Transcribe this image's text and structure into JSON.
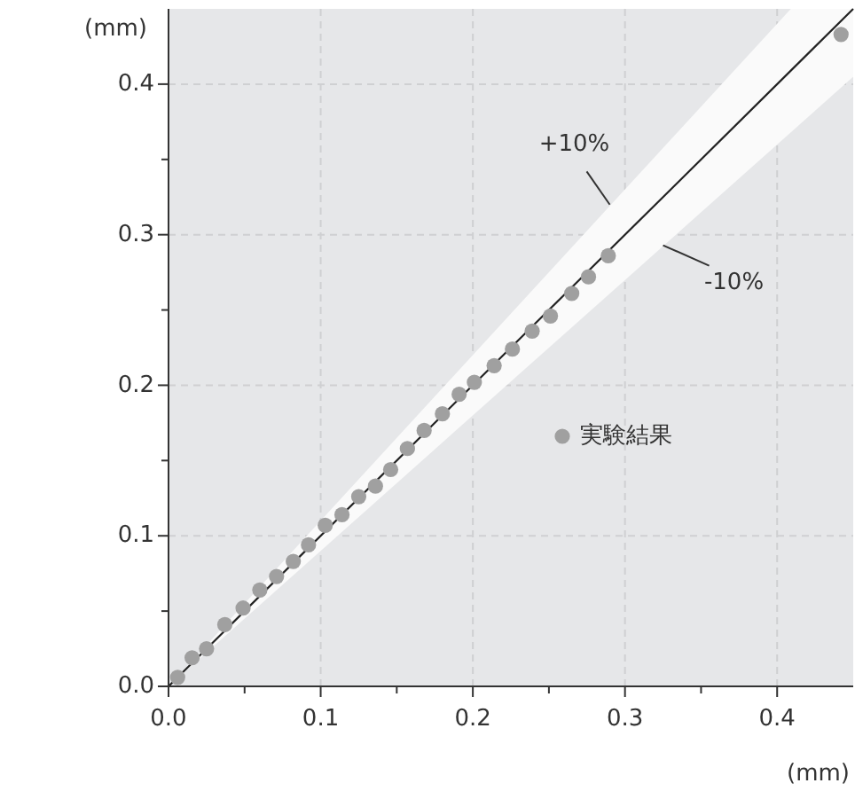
{
  "chart_data": {
    "type": "scatter",
    "xlabel": "(mm)",
    "ylabel": "(mm)",
    "xlim": [
      0,
      0.45
    ],
    "ylim": [
      0,
      0.45
    ],
    "xticks": [
      {
        "value": 0,
        "label": "0.0"
      },
      {
        "value": 0.05,
        "label": null
      },
      0.1,
      {
        "value": 0.15,
        "label": null
      },
      0.2,
      {
        "value": 0.25,
        "label": null
      },
      0.3,
      {
        "value": 0.35,
        "label": null
      },
      0.4
    ],
    "yticks": [
      {
        "value": 0,
        "label": "0.0"
      },
      {
        "value": 0.05,
        "label": null
      },
      0.1,
      {
        "value": 0.15,
        "label": null
      },
      0.2,
      {
        "value": 0.25,
        "label": null
      },
      0.3,
      {
        "value": 0.35,
        "label": null
      },
      0.4
    ],
    "grid": true,
    "legend": "right",
    "series": [
      {
        "type": "line",
        "color": "#222222",
        "line_style": "solid",
        "marker": "none",
        "x": [
          0,
          0.409,
          0.45
        ],
        "values": [
          0,
          0.409,
          0.45
        ],
        "lower": [
          0,
          0.368,
          0.405
        ],
        "upper": [
          0,
          0.45,
          0.45
        ]
      },
      {
        "name": "実験結果",
        "color": "#a0a0a0",
        "marker": "circle",
        "x": [
          0.006,
          0.0155,
          0.025,
          0.037,
          0.049,
          0.06,
          0.071,
          0.082,
          0.092,
          0.103,
          0.114,
          0.125,
          0.136,
          0.146,
          0.157,
          0.168,
          0.18,
          0.191,
          0.201,
          0.214,
          0.226,
          0.239,
          0.251,
          0.265,
          0.276,
          0.289,
          0.442
        ],
        "values": [
          0.006,
          0.019,
          0.025,
          0.041,
          0.052,
          0.064,
          0.073,
          0.083,
          0.094,
          0.107,
          0.114,
          0.126,
          0.133,
          0.144,
          0.158,
          0.17,
          0.181,
          0.194,
          0.202,
          0.213,
          0.224,
          0.236,
          0.246,
          0.261,
          0.272,
          0.286,
          0.433
        ]
      }
    ],
    "annotations": [
      {
        "text": "+10%",
        "x": 0.29,
        "y": 0.32
      },
      {
        "text": "-10%",
        "x": 0.325,
        "y": 0.293
      }
    ]
  }
}
